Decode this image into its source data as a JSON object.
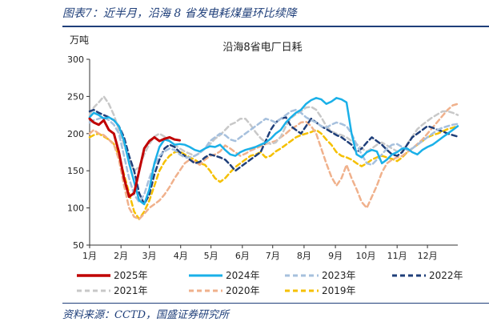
{
  "figure_title": "图表7：近半月，沿海 8 省发电耗煤量环比续降",
  "source": "资料来源：CCTD，国盛证券研究所",
  "chart_data": {
    "type": "line",
    "title": "沿海8省电厂日耗",
    "ylabel": "万吨",
    "xlabel": "",
    "ylim": [
      50,
      300
    ],
    "yticks": [
      50,
      100,
      150,
      200,
      250,
      300
    ],
    "grid": false,
    "legend_position": "bottom",
    "x": [
      1,
      5,
      10,
      15,
      20,
      25,
      30,
      35,
      40,
      45,
      50,
      55,
      60,
      65,
      70,
      75,
      80,
      85,
      90,
      95,
      100,
      105,
      110,
      115,
      120,
      125,
      130,
      135,
      140,
      145,
      150,
      155,
      160,
      165,
      170,
      175,
      180,
      185,
      190,
      195,
      200,
      205,
      210,
      215,
      220,
      225,
      230,
      235,
      240,
      245,
      250,
      255,
      260,
      265,
      270,
      275,
      280,
      285,
      290,
      295,
      300,
      305,
      310,
      315,
      320,
      325,
      330,
      335,
      340,
      345,
      350,
      355,
      360,
      365
    ],
    "x_categories": [
      "1月",
      "2月",
      "3月",
      "4月",
      "5月",
      "6月",
      "7月",
      "8月",
      "9月",
      "10月",
      "11月",
      "12月"
    ],
    "x_category_days": [
      1,
      32,
      60,
      91,
      121,
      152,
      182,
      213,
      244,
      274,
      305,
      335
    ],
    "series": [
      {
        "name": "2025年",
        "color": "#c00000",
        "dash": "solid",
        "width": 3,
        "values": [
          220,
          215,
          212,
          218,
          205,
          200,
          175,
          140,
          115,
          120,
          150,
          180,
          190,
          195,
          190,
          193,
          195,
          192,
          191,
          null,
          null,
          null,
          null,
          null,
          null,
          null,
          null,
          null,
          null,
          null,
          null,
          null,
          null,
          null,
          null,
          null,
          null,
          null,
          null,
          null,
          null,
          null,
          null,
          null,
          null,
          null,
          null,
          null,
          null,
          null,
          null,
          null,
          null,
          null,
          null,
          null,
          null,
          null,
          null,
          null,
          null,
          null,
          null,
          null,
          null,
          null,
          null,
          null,
          null,
          null,
          null,
          null,
          null,
          null
        ]
      },
      {
        "name": "2024年",
        "color": "#1ab0e8",
        "dash": "solid",
        "width": 2.5,
        "values": [
          222,
          228,
          225,
          220,
          222,
          218,
          210,
          190,
          160,
          135,
          110,
          105,
          125,
          160,
          182,
          192,
          190,
          185,
          186,
          185,
          182,
          178,
          176,
          180,
          183,
          182,
          185,
          178,
          172,
          170,
          175,
          178,
          180,
          182,
          185,
          188,
          193,
          200,
          205,
          215,
          222,
          228,
          232,
          240,
          245,
          248,
          246,
          240,
          243,
          248,
          246,
          242,
          200,
          172,
          168,
          175,
          178,
          176,
          160,
          165,
          172,
          175,
          180,
          180,
          175,
          172,
          178,
          182,
          185,
          190,
          195,
          200,
          205,
          210
        ]
      },
      {
        "name": "2023年",
        "color": "#a6c0dd",
        "dash": "dash",
        "width": 2.5,
        "values": [
          215,
          218,
          220,
          222,
          218,
          212,
          200,
          170,
          140,
          118,
          108,
          118,
          140,
          158,
          170,
          176,
          180,
          178,
          172,
          168,
          168,
          170,
          174,
          180,
          190,
          195,
          200,
          198,
          192,
          190,
          195,
          200,
          205,
          210,
          215,
          220,
          218,
          215,
          220,
          225,
          230,
          232,
          228,
          222,
          218,
          215,
          210,
          208,
          212,
          215,
          213,
          210,
          200,
          185,
          172,
          160,
          158,
          165,
          172,
          180,
          185,
          186,
          182,
          178,
          180,
          185,
          190,
          195,
          200,
          205,
          208,
          210,
          212,
          213
        ]
      },
      {
        "name": "2022年",
        "color": "#1f3f7a",
        "dash": "dash",
        "width": 2.5,
        "values": [
          230,
          232,
          228,
          225,
          222,
          218,
          210,
          195,
          170,
          150,
          120,
          105,
          118,
          145,
          165,
          180,
          185,
          182,
          175,
          170,
          165,
          160,
          162,
          168,
          172,
          170,
          168,
          165,
          158,
          150,
          155,
          160,
          165,
          170,
          175,
          190,
          205,
          215,
          220,
          222,
          210,
          205,
          200,
          210,
          220,
          215,
          210,
          206,
          202,
          198,
          195,
          190,
          185,
          175,
          180,
          188,
          195,
          190,
          185,
          178,
          172,
          170,
          175,
          185,
          195,
          200,
          205,
          210,
          208,
          205,
          203,
          200,
          198,
          196
        ]
      },
      {
        "name": "2021年",
        "color": "#c8c8c8",
        "dash": "dash",
        "width": 2.5,
        "values": [
          225,
          235,
          242,
          250,
          240,
          225,
          205,
          185,
          165,
          150,
          155,
          172,
          186,
          196,
          200,
          196,
          190,
          185,
          180,
          176,
          173,
          170,
          174,
          180,
          186,
          193,
          198,
          205,
          212,
          215,
          220,
          220,
          212,
          202,
          194,
          188,
          186,
          188,
          196,
          210,
          221,
          226,
          230,
          235,
          236,
          232,
          222,
          210,
          203,
          200,
          198,
          195,
          190,
          186,
          180,
          176,
          180,
          185,
          188,
          184,
          180,
          176,
          178,
          186,
          196,
          206,
          212,
          217,
          222,
          226,
          230,
          230,
          228,
          225
        ]
      },
      {
        "name": "2020年",
        "color": "#f0b18c",
        "dash": "dash",
        "width": 2.5,
        "values": [
          200,
          205,
          200,
          198,
          192,
          185,
          165,
          130,
          100,
          88,
          85,
          92,
          100,
          105,
          110,
          118,
          128,
          140,
          150,
          160,
          165,
          162,
          158,
          165,
          170,
          172,
          176,
          184,
          180,
          175,
          170,
          173,
          177,
          180,
          183,
          186,
          188,
          190,
          195,
          200,
          206,
          210,
          215,
          216,
          210,
          200,
          180,
          160,
          142,
          130,
          140,
          158,
          140,
          125,
          108,
          100,
          115,
          130,
          148,
          160,
          165,
          168,
          170,
          175,
          180,
          186,
          192,
          200,
          208,
          216,
          224,
          232,
          238,
          240
        ]
      },
      {
        "name": "2019年",
        "color": "#f5c000",
        "dash": "dash",
        "width": 2.5,
        "values": [
          195,
          198,
          200,
          196,
          192,
          186,
          170,
          145,
          120,
          95,
          85,
          95,
          110,
          130,
          150,
          162,
          170,
          175,
          176,
          172,
          168,
          165,
          160,
          158,
          150,
          140,
          135,
          140,
          148,
          155,
          160,
          165,
          170,
          172,
          175,
          168,
          170,
          176,
          180,
          185,
          190,
          195,
          198,
          200,
          202,
          205,
          200,
          192,
          185,
          175,
          170,
          168,
          165,
          160,
          156,
          160,
          165,
          168,
          170,
          168,
          166,
          163,
          168,
          175,
          180,
          185,
          190,
          195,
          198,
          200,
          203,
          206,
          208,
          210
        ]
      }
    ]
  }
}
